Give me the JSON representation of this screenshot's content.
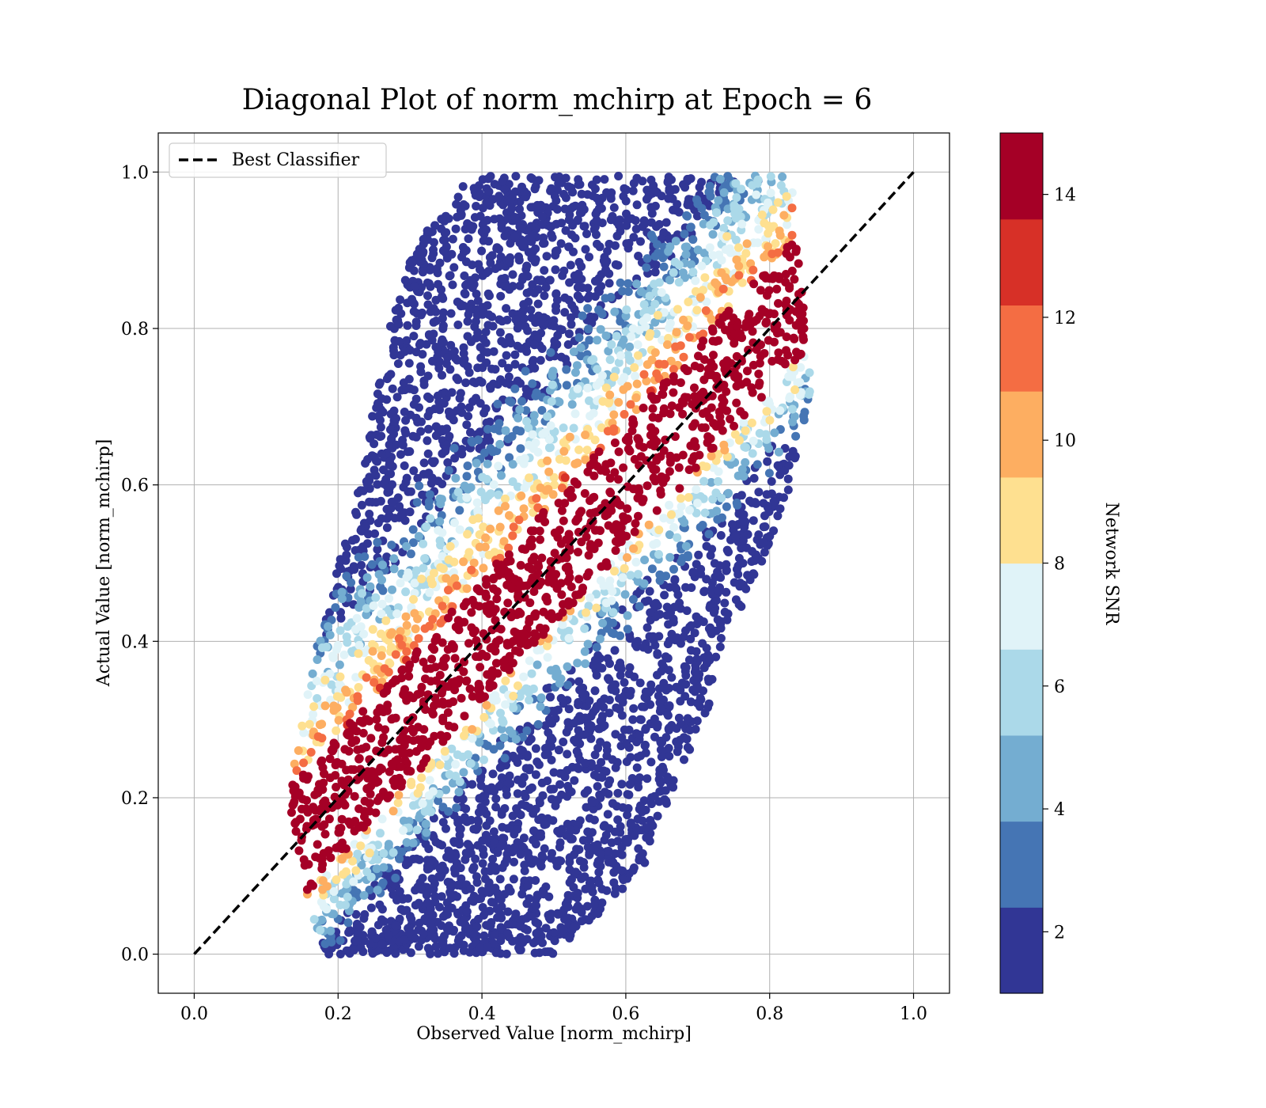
{
  "chart_data": {
    "type": "scatter",
    "title": "Diagonal Plot of norm_mchirp at Epoch = 6",
    "xlabel": "Observed Value [norm_mchirp]",
    "ylabel": "Actual Value [norm_mchirp]",
    "xlim": [
      -0.05,
      1.05
    ],
    "ylim": [
      -0.05,
      1.05
    ],
    "xticks": [
      "0.0",
      "0.2",
      "0.4",
      "0.6",
      "0.8",
      "1.0"
    ],
    "yticks": [
      "0.0",
      "0.2",
      "0.4",
      "0.6",
      "0.8",
      "1.0"
    ],
    "grid": true,
    "legend": {
      "position": "top-left",
      "entries": [
        "Best Classifier"
      ]
    },
    "reference_line": {
      "name": "Best Classifier",
      "x": [
        0,
        1
      ],
      "y": [
        0,
        1
      ],
      "style": "dashed",
      "color": "#000000"
    },
    "colorbar": {
      "label": "Network SNR",
      "range": [
        1,
        15
      ],
      "ticks": [
        "2",
        "4",
        "6",
        "8",
        "10",
        "12",
        "14"
      ],
      "bins": 10,
      "colors": [
        "#313695",
        "#4575b4",
        "#74add1",
        "#abd9e9",
        "#e0f3f8",
        "#fee090",
        "#fdae61",
        "#f46d43",
        "#d73027",
        "#a50026"
      ]
    },
    "point_density": {
      "note_shape": "band",
      "band_rows": [
        {
          "y": 0.0,
          "x_min": 0.18,
          "x_max": 0.5
        },
        {
          "y": 0.1,
          "x_min": 0.15,
          "x_max": 0.62
        },
        {
          "y": 0.2,
          "x_min": 0.13,
          "x_max": 0.66
        },
        {
          "y": 0.3,
          "x_min": 0.15,
          "x_max": 0.71
        },
        {
          "y": 0.4,
          "x_min": 0.17,
          "x_max": 0.74
        },
        {
          "y": 0.5,
          "x_min": 0.2,
          "x_max": 0.79
        },
        {
          "y": 0.6,
          "x_min": 0.23,
          "x_max": 0.83
        },
        {
          "y": 0.7,
          "x_min": 0.25,
          "x_max": 0.86
        },
        {
          "y": 0.8,
          "x_min": 0.27,
          "x_max": 0.85
        },
        {
          "y": 0.9,
          "x_min": 0.3,
          "x_max": 0.84
        },
        {
          "y": 0.99,
          "x_min": 0.38,
          "x_max": 0.83
        }
      ],
      "high_snr_core_offset": 0.0,
      "spread_low_snr_above_diagonal": 0.18,
      "spread_low_snr_below_diagonal": 0.12
    }
  }
}
